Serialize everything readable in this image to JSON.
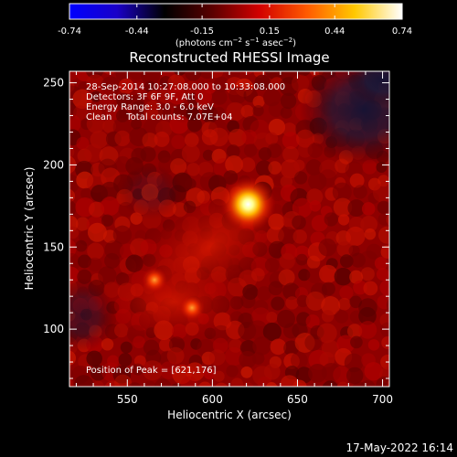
{
  "colorbar": {
    "ticks": [
      "-0.74",
      "-0.44",
      "-0.15",
      "0.15",
      "0.44",
      "0.74"
    ],
    "range": [
      -0.74,
      0.74
    ],
    "units": "(photons cm",
    "units_exp1": "−2",
    "units_mid": " s",
    "units_exp2": "−1",
    "units_tail": " asec",
    "units_exp3": "−2",
    "units_close": ")",
    "colors": [
      "#0000ff",
      "#1a00c8",
      "#000000",
      "#5a0000",
      "#d20000",
      "#ff5a00",
      "#ffc800",
      "#ffffff"
    ]
  },
  "chart_data": {
    "type": "heatmap",
    "title": "Reconstructed RHESSI Image",
    "xlabel": "Heliocentric X (arcsec)",
    "ylabel": "Heliocentric Y (arcsec)",
    "xlim": [
      516,
      704
    ],
    "ylim": [
      65,
      257
    ],
    "x_ticks": [
      550,
      600,
      650,
      700
    ],
    "y_ticks": [
      100,
      150,
      200,
      250
    ],
    "info_lines": [
      "28-Sep-2014 10:27:08.000 to 10:33:08.000",
      "Detectors: 3F 6F 9F, Att 0",
      "Energy Range: 3.0 - 6.0 keV",
      "Clean     Total counts: 7.07E+04"
    ],
    "peak_label": "Position of Peak = [621,176]",
    "sources": [
      {
        "x": 621,
        "y": 176,
        "intensity": 0.74
      },
      {
        "x": 588,
        "y": 113,
        "intensity": 0.45
      },
      {
        "x": 566,
        "y": 130,
        "intensity": 0.38
      }
    ]
  },
  "timestamp": "17-May-2022 16:14"
}
